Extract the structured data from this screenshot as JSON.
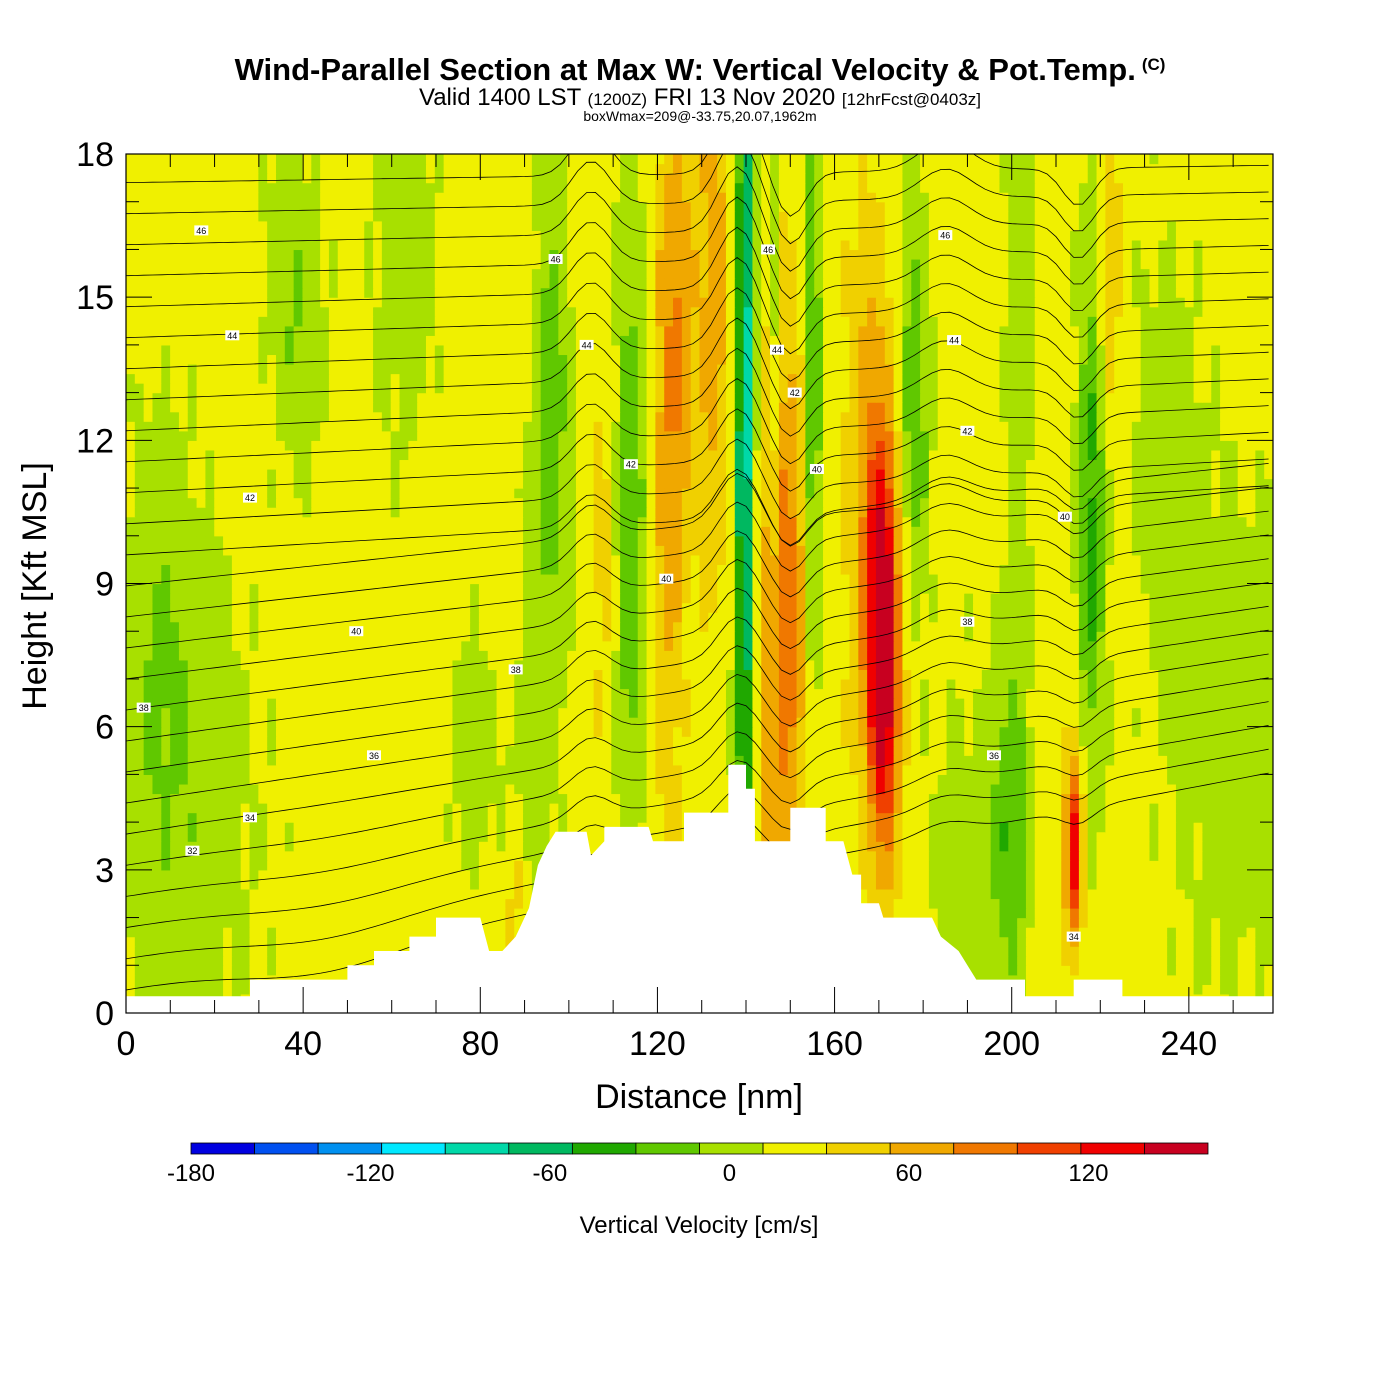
{
  "header": {
    "title": "Wind-Parallel Section at Max W: Vertical Velocity & Pot.Temp.",
    "copyright": "(C)",
    "valid_prefix": "Valid 1400 LST",
    "valid_utc": "(1200Z)",
    "valid_date": "FRI 13 Nov 2020",
    "forecast": "[12hrFcst@0403z]",
    "box_info": "boxWmax=209@-33.75,20.07,1962m"
  },
  "chart_data": {
    "type": "heatmap",
    "xlabel": "Distance [nm]",
    "ylabel": "Height [Kft MSL]",
    "xlim": [
      0,
      259
    ],
    "ylim": [
      0,
      18
    ],
    "x_ticks": [
      0,
      40,
      80,
      120,
      160,
      200,
      240
    ],
    "y_ticks": [
      0,
      3,
      6,
      9,
      12,
      15,
      18
    ],
    "grid": false,
    "terrain_kft": [
      [
        0,
        0.35
      ],
      [
        28,
        0.35
      ],
      [
        28,
        0.7
      ],
      [
        50,
        0.7
      ],
      [
        50,
        1.0
      ],
      [
        56,
        1.0
      ],
      [
        56,
        1.3
      ],
      [
        64,
        1.3
      ],
      [
        64,
        1.6
      ],
      [
        70,
        1.6
      ],
      [
        70,
        2.0
      ],
      [
        80,
        2.0
      ],
      [
        82,
        1.3
      ],
      [
        85,
        1.3
      ],
      [
        88,
        1.6
      ],
      [
        91,
        2.2
      ],
      [
        93,
        3.1
      ],
      [
        95,
        3.5
      ],
      [
        97,
        3.8
      ],
      [
        104,
        3.8
      ],
      [
        105,
        3.3
      ],
      [
        108,
        3.6
      ],
      [
        108,
        3.9
      ],
      [
        118,
        3.9
      ],
      [
        119,
        3.6
      ],
      [
        126,
        3.6
      ],
      [
        126,
        4.2
      ],
      [
        136,
        4.2
      ],
      [
        136,
        5.2
      ],
      [
        140,
        5.2
      ],
      [
        140,
        4.7
      ],
      [
        142,
        4.7
      ],
      [
        142,
        3.6
      ],
      [
        150,
        3.6
      ],
      [
        150,
        4.3
      ],
      [
        158,
        4.3
      ],
      [
        158,
        3.6
      ],
      [
        162,
        3.6
      ],
      [
        164,
        2.9
      ],
      [
        166,
        2.9
      ],
      [
        166,
        2.3
      ],
      [
        170,
        2.3
      ],
      [
        171,
        2.0
      ],
      [
        182,
        2.0
      ],
      [
        184,
        1.6
      ],
      [
        188,
        1.3
      ],
      [
        190,
        1.0
      ],
      [
        192,
        0.7
      ],
      [
        203,
        0.7
      ],
      [
        203,
        0.35
      ],
      [
        214,
        0.35
      ],
      [
        214,
        0.7
      ],
      [
        225,
        0.7
      ],
      [
        225,
        0.35
      ],
      [
        259,
        0.35
      ]
    ],
    "colorbar": {
      "label": "Vertical Velocity [cm/s]",
      "min": -180,
      "max": 160,
      "step": 20,
      "tick_labels": [
        -180,
        -120,
        -60,
        0,
        60,
        120
      ],
      "colors": [
        "#0000e0",
        "#0050f0",
        "#0090f0",
        "#00e8ff",
        "#00d8a8",
        "#00b860",
        "#20a800",
        "#60c800",
        "#a8e000",
        "#f0f000",
        "#f0d000",
        "#f0a800",
        "#f07800",
        "#f04000",
        "#f00000",
        "#c80020"
      ]
    },
    "isentropes_labels": [
      "46",
      "44",
      "42",
      "40",
      "38",
      "36",
      "34",
      "32"
    ],
    "isentrope_label_points": [
      {
        "x": 17,
        "y": 16.4,
        "label": "46"
      },
      {
        "x": 24,
        "y": 14.2,
        "label": "44"
      },
      {
        "x": 28,
        "y": 10.8,
        "label": "42"
      },
      {
        "x": 52,
        "y": 8.0,
        "label": "40"
      },
      {
        "x": 88,
        "y": 7.2,
        "label": "38"
      },
      {
        "x": 4,
        "y": 6.4,
        "label": "38"
      },
      {
        "x": 56,
        "y": 5.4,
        "label": "36"
      },
      {
        "x": 28,
        "y": 4.1,
        "label": "34"
      },
      {
        "x": 15,
        "y": 3.4,
        "label": "32"
      },
      {
        "x": 97,
        "y": 15.8,
        "label": "46"
      },
      {
        "x": 104,
        "y": 14.0,
        "label": "44"
      },
      {
        "x": 114,
        "y": 11.5,
        "label": "42"
      },
      {
        "x": 122,
        "y": 9.1,
        "label": "40"
      },
      {
        "x": 145,
        "y": 16.0,
        "label": "46"
      },
      {
        "x": 147,
        "y": 13.9,
        "label": "44"
      },
      {
        "x": 151,
        "y": 13.0,
        "label": "42"
      },
      {
        "x": 156,
        "y": 11.4,
        "label": "40"
      },
      {
        "x": 185,
        "y": 16.3,
        "label": "46"
      },
      {
        "x": 187,
        "y": 14.1,
        "label": "44"
      },
      {
        "x": 190,
        "y": 12.2,
        "label": "42"
      },
      {
        "x": 212,
        "y": 10.4,
        "label": "40"
      },
      {
        "x": 190,
        "y": 8.2,
        "label": "38"
      },
      {
        "x": 196,
        "y": 5.4,
        "label": "36"
      },
      {
        "x": 214,
        "y": 1.6,
        "label": "34"
      }
    ]
  }
}
